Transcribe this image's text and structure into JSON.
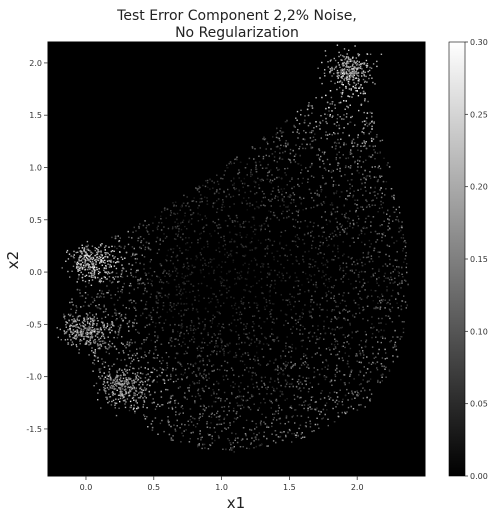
{
  "chart_data": {
    "type": "scatter",
    "title_lines": [
      "Test Error Component 2,2% Noise,",
      "No Regularization"
    ],
    "xlabel": "x1",
    "ylabel": "x2",
    "xlim": [
      -0.28,
      2.5
    ],
    "ylim": [
      -1.95,
      2.2
    ],
    "x_ticks": [
      0.0,
      0.5,
      1.0,
      1.5,
      2.0
    ],
    "x_tick_labels": [
      "0.0",
      "0.5",
      "1.0",
      "1.5",
      "2.0"
    ],
    "y_ticks": [
      -1.5,
      -1.0,
      -0.5,
      0.0,
      0.5,
      1.0,
      1.5,
      2.0
    ],
    "y_tick_labels": [
      "-1.5",
      "-1.0",
      "-0.5",
      "0.0",
      "0.5",
      "1.0",
      "1.5",
      "2.0"
    ],
    "background": "#000000",
    "colormap": "gray",
    "colorbar": {
      "min": 0.0,
      "max": 0.3,
      "ticks": [
        0.0,
        0.05,
        0.1,
        0.15,
        0.2,
        0.25,
        0.3
      ],
      "tick_labels": [
        "0.00",
        "0.05",
        "0.10",
        "0.15",
        "0.20",
        "0.25",
        "0.30"
      ]
    },
    "grid": false,
    "point_cloud": {
      "description_region": "fan-shaped cloud bounded by these vertices (data units)",
      "boundary": [
        [
          -0.1,
          0.05
        ],
        [
          -0.05,
          0.25
        ],
        [
          0.3,
          0.4
        ],
        [
          0.9,
          0.9
        ],
        [
          1.3,
          1.3
        ],
        [
          1.7,
          1.7
        ],
        [
          1.95,
          2.0
        ],
        [
          2.05,
          1.75
        ],
        [
          2.2,
          1.2
        ],
        [
          2.35,
          0.4
        ],
        [
          2.38,
          -0.3
        ],
        [
          2.3,
          -0.8
        ],
        [
          2.1,
          -1.25
        ],
        [
          1.6,
          -1.6
        ],
        [
          1.0,
          -1.75
        ],
        [
          0.5,
          -1.55
        ],
        [
          0.2,
          -1.2
        ],
        [
          -0.1,
          -0.7
        ],
        [
          -0.18,
          -0.4
        ],
        [
          -0.05,
          -0.1
        ]
      ],
      "bright_clusters": [
        {
          "x": 0.05,
          "y": 0.1,
          "value": 0.28
        },
        {
          "x": 0.0,
          "y": -0.55,
          "value": 0.24
        },
        {
          "x": 0.25,
          "y": -1.1,
          "value": 0.22
        },
        {
          "x": 1.95,
          "y": 1.95,
          "value": 0.26
        }
      ],
      "n_points": 6500
    }
  }
}
